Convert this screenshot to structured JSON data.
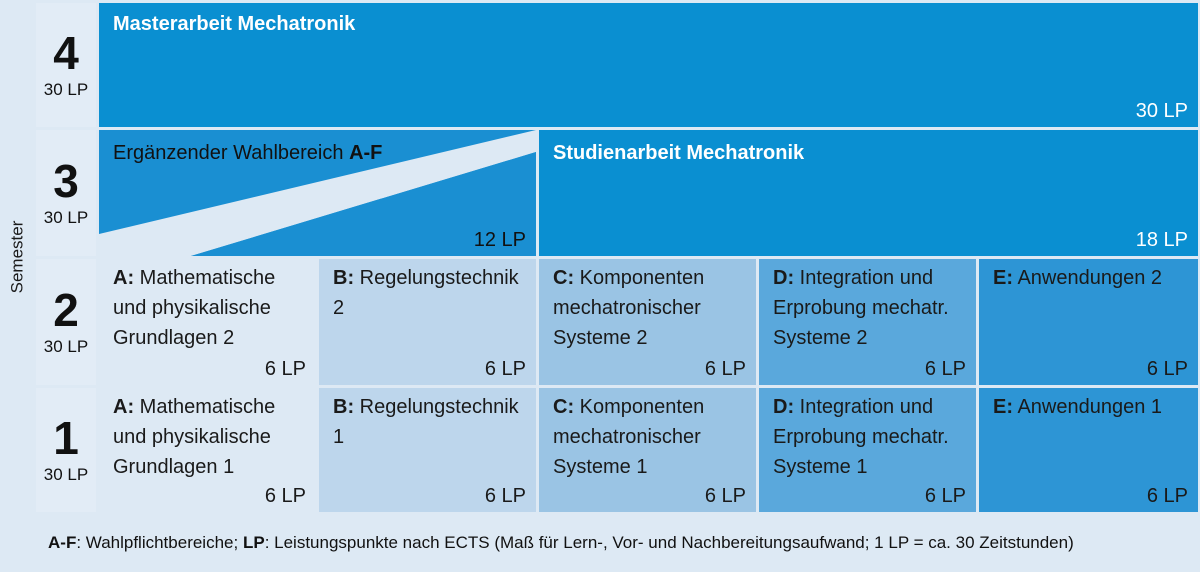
{
  "axis": {
    "label": "Semester"
  },
  "semesters": [
    {
      "num": "4",
      "lp": "30 LP"
    },
    {
      "num": "3",
      "lp": "30 LP"
    },
    {
      "num": "2",
      "lp": "30 LP"
    },
    {
      "num": "1",
      "lp": "30 LP"
    }
  ],
  "sem4": {
    "title": "Masterarbeit Mechatronik",
    "lp": "30 LP"
  },
  "sem3": {
    "wahl_title": "Ergänzender Wahlbereich",
    "wahl_bold": "A-F",
    "wahl_lp": "12 LP",
    "studien_title": "Studienarbeit Mechatronik",
    "studien_lp": "18 LP"
  },
  "sem2": [
    {
      "key": "A:",
      "text": "Mathematische und physikalische Grundlagen 2",
      "lp": "6 LP"
    },
    {
      "key": "B:",
      "text": "Regelungstechnik 2",
      "lp": "6 LP"
    },
    {
      "key": "C:",
      "text": "Komponenten mechatronischer Systeme 2",
      "lp": "6 LP"
    },
    {
      "key": "D:",
      "text": "Integration und Erprobung mechatr. Systeme 2",
      "lp": "6 LP"
    },
    {
      "key": "E:",
      "text": "Anwendungen 2",
      "lp": "6 LP"
    }
  ],
  "sem1": [
    {
      "key": "A:",
      "text": "Mathematische und physikalische Grundlagen 1",
      "lp": "6 LP"
    },
    {
      "key": "B:",
      "text": "Regelungstechnik 1",
      "lp": "6 LP"
    },
    {
      "key": "C:",
      "text": "Komponenten mechatronischer Systeme 1",
      "lp": "6 LP"
    },
    {
      "key": "D:",
      "text": "Integration und Erprobung mechatr. Systeme 1",
      "lp": "6 LP"
    },
    {
      "key": "E:",
      "text": "Anwendungen 1",
      "lp": "6 LP"
    }
  ],
  "footer": {
    "af_key": "A-F",
    "af_text": ": Wahlpflichtbereiche; ",
    "lp_key": "LP",
    "lp_text": ": Leistungspunkte nach ECTS (Maß für Lern-, Vor- und Nachbereitungsaufwand; 1 LP = ca. 30 Zeitstunden)"
  },
  "colors": {
    "col_a": "#dde9f4",
    "col_b": "#bdd6ec",
    "col_c": "#9ac4e4",
    "col_d": "#5aa8dc",
    "col_e": "#2d95d5",
    "dark": "#0a8fd1"
  }
}
